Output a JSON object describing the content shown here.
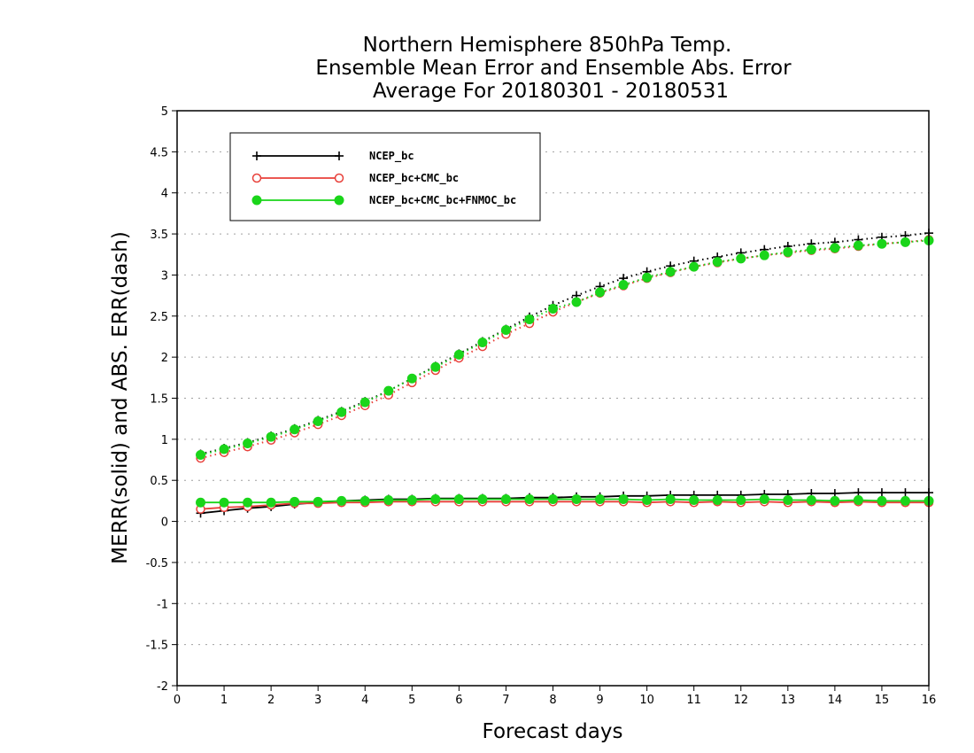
{
  "chart_data": {
    "type": "line",
    "title": [
      "Northern Hemisphere 850hPa Temp.",
      "Ensemble Mean Error and Ensemble Abs. Error",
      "Average For 20180301 - 20180531"
    ],
    "xlabel": "Forecast days",
    "ylabel": "MERR(solid) and ABS. ERR(dash)",
    "xlim": [
      0,
      16
    ],
    "ylim": [
      -2,
      5
    ],
    "xticks": [
      "0",
      "1",
      "2",
      "3",
      "4",
      "5",
      "6",
      "7",
      "8",
      "9",
      "10",
      "11",
      "12",
      "13",
      "14",
      "15",
      "16"
    ],
    "yticks": [
      "5",
      "4.5",
      "4",
      "3.5",
      "3",
      "2.5",
      "2",
      "1.5",
      "1",
      "0.5",
      "0",
      "-0.5",
      "-1",
      "-1.5",
      "-2"
    ],
    "grid": true,
    "legend_position": "top-left",
    "x": [
      0.5,
      1,
      1.5,
      2,
      2.5,
      3,
      3.5,
      4,
      4.5,
      5,
      5.5,
      6,
      6.5,
      7,
      7.5,
      8,
      8.5,
      9,
      9.5,
      10,
      10.5,
      11,
      11.5,
      12,
      12.5,
      13,
      13.5,
      14,
      14.5,
      15,
      15.5,
      16
    ],
    "series": [
      {
        "name": "NCEP_bc",
        "color": "#000000",
        "marker": "plus",
        "abs_err": [
          0.82,
          0.89,
          0.96,
          1.04,
          1.13,
          1.23,
          1.34,
          1.46,
          1.59,
          1.74,
          1.89,
          2.04,
          2.19,
          2.34,
          2.49,
          2.63,
          2.75,
          2.86,
          2.96,
          3.04,
          3.11,
          3.17,
          3.22,
          3.27,
          3.31,
          3.35,
          3.38,
          3.4,
          3.43,
          3.46,
          3.48,
          3.51
        ],
        "mean_err": [
          0.1,
          0.13,
          0.16,
          0.18,
          0.21,
          0.23,
          0.25,
          0.26,
          0.27,
          0.27,
          0.28,
          0.28,
          0.28,
          0.28,
          0.29,
          0.29,
          0.3,
          0.3,
          0.31,
          0.31,
          0.32,
          0.32,
          0.32,
          0.32,
          0.33,
          0.33,
          0.34,
          0.34,
          0.35,
          0.35,
          0.35,
          0.35
        ]
      },
      {
        "name": "NCEP_bc+CMC_bc",
        "color": "#e8403a",
        "marker": "circle-open",
        "abs_err": [
          0.77,
          0.84,
          0.91,
          0.99,
          1.08,
          1.18,
          1.29,
          1.41,
          1.54,
          1.69,
          1.84,
          1.99,
          2.13,
          2.28,
          2.41,
          2.55,
          2.67,
          2.78,
          2.87,
          2.96,
          3.03,
          3.1,
          3.15,
          3.2,
          3.24,
          3.27,
          3.3,
          3.32,
          3.35,
          3.38,
          3.4,
          3.43
        ],
        "mean_err": [
          0.15,
          0.17,
          0.18,
          0.2,
          0.22,
          0.22,
          0.23,
          0.23,
          0.24,
          0.24,
          0.24,
          0.24,
          0.24,
          0.24,
          0.24,
          0.24,
          0.24,
          0.24,
          0.24,
          0.23,
          0.24,
          0.23,
          0.24,
          0.23,
          0.24,
          0.23,
          0.24,
          0.23,
          0.24,
          0.23,
          0.23,
          0.23
        ]
      },
      {
        "name": "NCEP_bc+CMC_bc+FNMOC_bc",
        "color": "#1ad51a",
        "marker": "circle-filled",
        "abs_err": [
          0.81,
          0.88,
          0.95,
          1.03,
          1.12,
          1.22,
          1.33,
          1.45,
          1.59,
          1.74,
          1.88,
          2.03,
          2.18,
          2.33,
          2.46,
          2.59,
          2.67,
          2.79,
          2.88,
          2.97,
          3.04,
          3.1,
          3.16,
          3.2,
          3.24,
          3.28,
          3.31,
          3.33,
          3.36,
          3.38,
          3.4,
          3.42
        ],
        "mean_err": [
          0.23,
          0.23,
          0.23,
          0.23,
          0.24,
          0.24,
          0.25,
          0.25,
          0.26,
          0.26,
          0.27,
          0.27,
          0.27,
          0.27,
          0.27,
          0.27,
          0.27,
          0.27,
          0.27,
          0.26,
          0.27,
          0.26,
          0.26,
          0.26,
          0.27,
          0.26,
          0.26,
          0.25,
          0.26,
          0.25,
          0.25,
          0.25
        ]
      }
    ]
  }
}
